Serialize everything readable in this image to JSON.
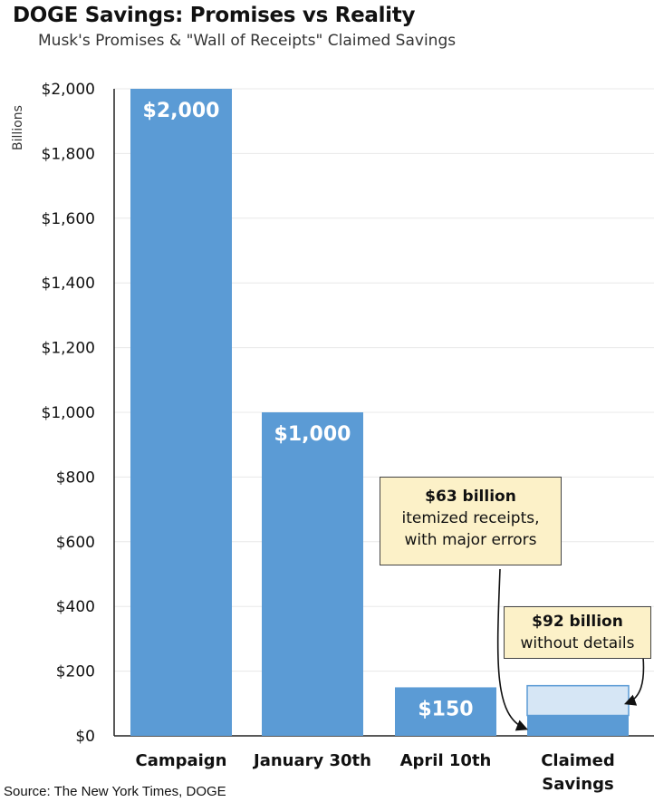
{
  "header": {
    "title": "DOGE Savings: Promises vs Reality",
    "subtitle": "Musk's Promises & \"Wall of Receipts\" Claimed Savings"
  },
  "footer": {
    "source": "Source: The New York Times, DOGE"
  },
  "colors": {
    "bar": "#5b9bd5",
    "bar_light": "#d6e6f5",
    "grid": "#e8e8e8",
    "callout_bg": "#fcf1c8"
  },
  "annotations": [
    {
      "bold": "$63 billion",
      "lines": [
        "itemized receipts,",
        "with major errors"
      ]
    },
    {
      "bold": "$92 billion",
      "lines": [
        "without details"
      ]
    }
  ],
  "chart_data": {
    "type": "bar",
    "title": "DOGE Savings: Promises vs Reality",
    "subtitle": "Musk's Promises & \"Wall of Receipts\" Claimed Savings",
    "ylabel": "Billions",
    "xlabel": "",
    "ylim": [
      0,
      2000
    ],
    "yticks": [
      0,
      200,
      400,
      600,
      800,
      1000,
      1200,
      1400,
      1600,
      1800,
      2000
    ],
    "ytick_labels": [
      "$0",
      "$200",
      "$400",
      "$600",
      "$800",
      "$1,000",
      "$1,200",
      "$1,400",
      "$1,600",
      "$1,800",
      "$2,000"
    ],
    "categories": [
      "Campaign",
      "January 30th",
      "April 10th",
      "Claimed Savings"
    ],
    "values": [
      2000,
      1000,
      150,
      155
    ],
    "data_labels": [
      "$2,000",
      "$1,000",
      "$150",
      ""
    ],
    "stacked_claimed_savings": [
      {
        "name": "$63 billion itemized receipts, with major errors",
        "value": 63
      },
      {
        "name": "$92 billion without details",
        "value": 92
      }
    ],
    "grid": true
  }
}
